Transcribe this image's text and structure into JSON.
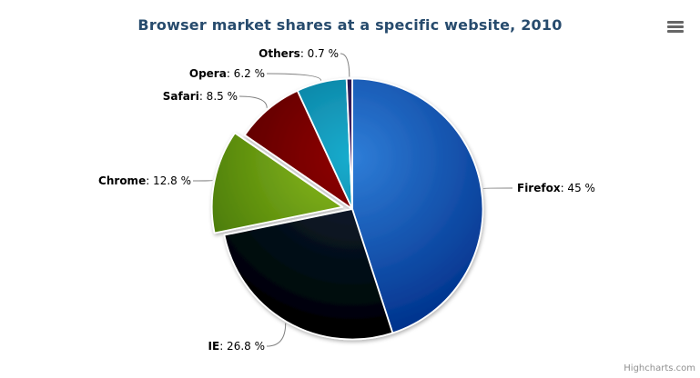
{
  "chart_data": {
    "type": "pie",
    "title": "Browser market shares at a specific website, 2010",
    "label_separator": ": ",
    "value_suffix": " %",
    "legend": false,
    "slices": [
      {
        "name": "Firefox",
        "value": 45,
        "color": "#2f7ed8",
        "sliced": false
      },
      {
        "name": "IE",
        "value": 26.8,
        "color": "#0d233a",
        "sliced": false
      },
      {
        "name": "Chrome",
        "value": 12.8,
        "color": "#8bbc21",
        "sliced": true
      },
      {
        "name": "Safari",
        "value": 8.5,
        "color": "#910000",
        "sliced": false
      },
      {
        "name": "Opera",
        "value": 6.2,
        "color": "#1aadce",
        "sliced": false
      },
      {
        "name": "Others",
        "value": 0.7,
        "color": "#492970",
        "sliced": false
      }
    ]
  },
  "colors": {
    "title": "#274b6d",
    "connector": "#818181",
    "slice_border": "#ffffff",
    "export_icon": "#666666",
    "credits": "#909090"
  },
  "export_menu": {
    "icon": "hamburger-icon"
  },
  "credits": {
    "label": "Highcharts.com"
  }
}
